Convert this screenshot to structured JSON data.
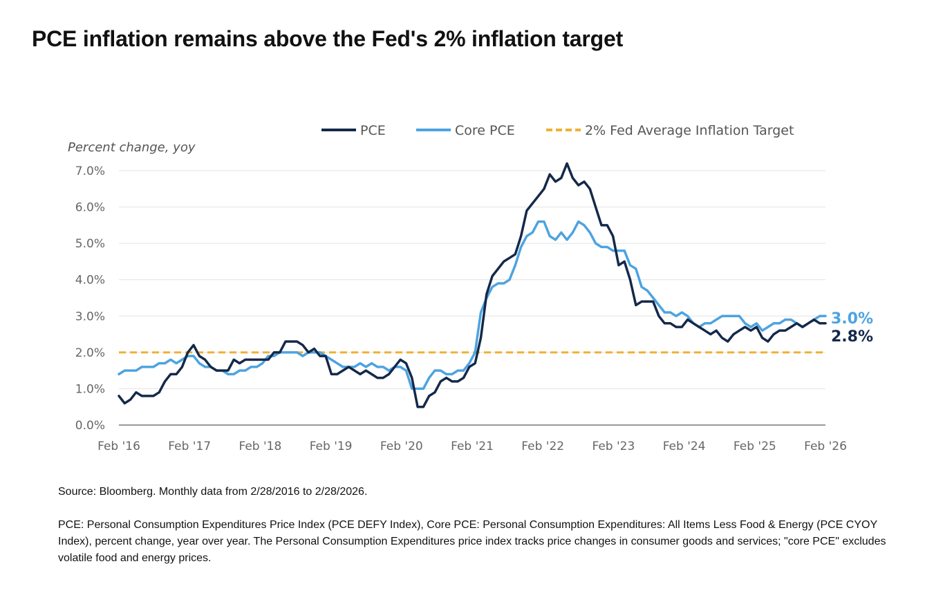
{
  "title": "PCE inflation remains above the Fed's 2% inflation target",
  "source_note": "Source: Bloomberg. Monthly data from 2/28/2016 to 2/28/2026.",
  "description_note": "PCE: Personal Consumption Expenditures Price Index (PCE DEFY Index), Core PCE: Personal Consumption Expenditures: All Items Less Food & Energy (PCE CYOY Index), percent change, year over year. The Personal Consumption Expenditures price index tracks price changes in consumer goods and services; \"core PCE\" excludes volatile food and energy prices.",
  "colors": {
    "pce": "#14294a",
    "core_pce": "#4da3e0",
    "target": "#f0b030",
    "grid": "#e2e2e2",
    "axis": "#999999"
  },
  "chart_data": {
    "type": "line",
    "ylabel": "Percent change, yoy",
    "ylim": [
      0,
      7
    ],
    "yticks": [
      "0.0%",
      "1.0%",
      "2.0%",
      "3.0%",
      "4.0%",
      "5.0%",
      "6.0%",
      "7.0%"
    ],
    "xticks": [
      "Feb '16",
      "Feb '17",
      "Feb '18",
      "Feb '19",
      "Feb '20",
      "Feb '21",
      "Feb '22",
      "Feb '23",
      "Feb '24",
      "Feb '25",
      "Feb '26"
    ],
    "x_start": "Feb 2016",
    "x_end": "Feb 2026",
    "grid": "horizontal",
    "legend_position": "top",
    "end_labels": {
      "core_pce": "3.0%",
      "pce": "2.8%"
    },
    "series": [
      {
        "name": "PCE",
        "color": "#14294a",
        "style": "solid",
        "values": [
          0.8,
          0.6,
          0.7,
          0.9,
          0.8,
          0.8,
          0.8,
          0.9,
          1.2,
          1.4,
          1.4,
          1.6,
          2.0,
          2.2,
          1.9,
          1.8,
          1.6,
          1.5,
          1.5,
          1.5,
          1.8,
          1.7,
          1.8,
          1.8,
          1.8,
          1.8,
          1.8,
          2.0,
          2.0,
          2.3,
          2.3,
          2.3,
          2.2,
          2.0,
          2.1,
          1.9,
          1.9,
          1.4,
          1.4,
          1.5,
          1.6,
          1.5,
          1.4,
          1.5,
          1.4,
          1.3,
          1.3,
          1.4,
          1.6,
          1.8,
          1.7,
          1.3,
          0.5,
          0.5,
          0.8,
          0.9,
          1.2,
          1.3,
          1.2,
          1.2,
          1.3,
          1.6,
          1.7,
          2.4,
          3.6,
          4.1,
          4.3,
          4.5,
          4.6,
          4.7,
          5.2,
          5.9,
          6.1,
          6.3,
          6.5,
          6.9,
          6.7,
          6.8,
          7.2,
          6.8,
          6.6,
          6.7,
          6.5,
          6.0,
          5.5,
          5.5,
          5.2,
          4.4,
          4.5,
          4.0,
          3.3,
          3.4,
          3.4,
          3.4,
          3.0,
          2.8,
          2.8,
          2.7,
          2.7,
          2.9,
          2.8,
          2.7,
          2.6,
          2.5,
          2.6,
          2.4,
          2.3,
          2.5,
          2.6,
          2.7,
          2.6,
          2.7,
          2.4,
          2.3,
          2.5,
          2.6,
          2.6,
          2.7,
          2.8,
          2.7,
          2.8,
          2.9,
          2.8,
          2.8
        ]
      },
      {
        "name": "Core PCE",
        "color": "#4da3e0",
        "style": "solid",
        "values": [
          1.4,
          1.5,
          1.5,
          1.5,
          1.6,
          1.6,
          1.6,
          1.7,
          1.7,
          1.8,
          1.7,
          1.8,
          1.9,
          1.9,
          1.7,
          1.6,
          1.6,
          1.5,
          1.5,
          1.4,
          1.4,
          1.5,
          1.5,
          1.6,
          1.6,
          1.7,
          1.9,
          1.9,
          2.0,
          2.0,
          2.0,
          2.0,
          1.9,
          2.0,
          2.0,
          2.0,
          1.9,
          1.8,
          1.7,
          1.6,
          1.6,
          1.6,
          1.7,
          1.6,
          1.7,
          1.6,
          1.6,
          1.5,
          1.6,
          1.6,
          1.5,
          1.0,
          1.0,
          1.0,
          1.3,
          1.5,
          1.5,
          1.4,
          1.4,
          1.5,
          1.5,
          1.7,
          2.0,
          3.1,
          3.5,
          3.8,
          3.9,
          3.9,
          4.0,
          4.4,
          4.9,
          5.2,
          5.3,
          5.6,
          5.6,
          5.2,
          5.1,
          5.3,
          5.1,
          5.3,
          5.6,
          5.5,
          5.3,
          5.0,
          4.9,
          4.9,
          4.8,
          4.8,
          4.8,
          4.4,
          4.3,
          3.8,
          3.7,
          3.5,
          3.3,
          3.1,
          3.1,
          3.0,
          3.1,
          3.0,
          2.8,
          2.7,
          2.8,
          2.8,
          2.9,
          3.0,
          3.0,
          3.0,
          3.0,
          2.8,
          2.7,
          2.8,
          2.6,
          2.7,
          2.8,
          2.8,
          2.9,
          2.9,
          2.8,
          2.7,
          2.8,
          2.9,
          3.0,
          3.0
        ]
      },
      {
        "name": "2% Fed Average Inflation Target",
        "color": "#f0b030",
        "style": "dashed",
        "values": [
          2.0,
          2.0
        ]
      }
    ]
  }
}
